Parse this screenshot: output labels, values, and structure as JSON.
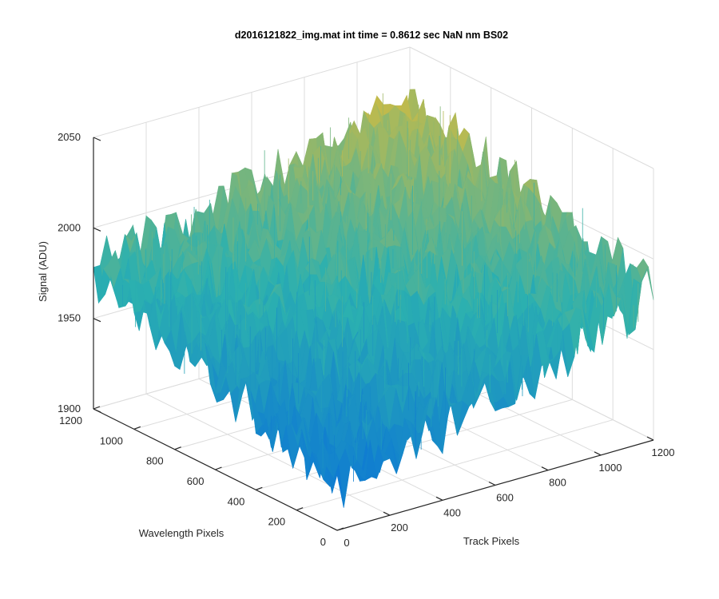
{
  "chart_data": {
    "type": "surface",
    "title": "d2016121822_img.mat int time = 0.8612 sec  NaN nm BS02",
    "xlabel": "Track Pixels",
    "ylabel": "Wavelength Pixels",
    "zlabel": "Signal (ADU)",
    "xlim": [
      0,
      1200
    ],
    "ylim": [
      0,
      1200
    ],
    "zlim": [
      1900,
      2050
    ],
    "xticks": [
      "0",
      "200",
      "400",
      "600",
      "800",
      "1000",
      "1200"
    ],
    "yticks": [
      "0",
      "200",
      "400",
      "600",
      "800",
      "1000",
      "1200"
    ],
    "zticks": [
      "1900",
      "1950",
      "2000",
      "2050"
    ],
    "grid": true,
    "colormap": "parula",
    "colors": {
      "low": "#0a72d8",
      "mid": "#2bb0b0",
      "high": "#d8bc3c"
    },
    "surface_profile": {
      "corner_values": {
        "x0_y0": 1925,
        "x1200_y0": 1980,
        "x0_y1200": 1975,
        "x1200_y1200": 2015
      },
      "noise_amplitude": 18,
      "note_points": [
        {
          "x": 0,
          "y": 600,
          "z": 1965
        },
        {
          "x": 600,
          "y": 0,
          "z": 1955
        },
        {
          "x": 600,
          "y": 1200,
          "z": 2000
        },
        {
          "x": 1200,
          "y": 600,
          "z": 1995
        }
      ]
    }
  }
}
